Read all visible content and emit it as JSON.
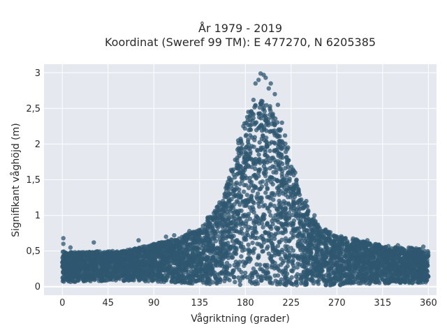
{
  "chart_data": {
    "type": "scatter",
    "title_line1": "År 1979 - 2019",
    "title_line2": "Koordinat (Sweref 99 TM): E 477270, N 6205385",
    "xlabel": "Vågriktning (grader)",
    "ylabel": "Signifikant våghöjd (m)",
    "xlim": [
      -18,
      368
    ],
    "ylim": [
      -0.12,
      3.12
    ],
    "x_ticks": [
      0,
      45,
      90,
      135,
      180,
      225,
      270,
      315,
      360
    ],
    "x_tick_labels": [
      "0",
      "45",
      "90",
      "135",
      "180",
      "225",
      "270",
      "315",
      "360"
    ],
    "y_ticks": [
      0,
      0.5,
      1,
      1.5,
      2,
      2.5,
      3
    ],
    "y_tick_labels": [
      "0",
      "0,5",
      "1",
      "1,5",
      "2",
      "2,5",
      "3"
    ],
    "grid": true,
    "legend": "none",
    "marker_color": "#2f5770",
    "background_color": "#e5e8ef",
    "envelope": {
      "x": [
        0,
        15,
        30,
        45,
        60,
        75,
        90,
        105,
        120,
        135,
        150,
        160,
        170,
        175,
        180,
        190,
        200,
        210,
        220,
        225,
        235,
        245,
        255,
        270,
        285,
        300,
        315,
        330,
        345,
        360
      ],
      "y_min": [
        0.06,
        0.07,
        0.08,
        0.08,
        0.08,
        0.08,
        0.07,
        0.06,
        0.05,
        0.04,
        0.03,
        0.02,
        0.02,
        0.02,
        0.02,
        0.02,
        0.02,
        0.02,
        0.02,
        0.02,
        0.02,
        0.02,
        0.02,
        0.02,
        0.03,
        0.04,
        0.04,
        0.05,
        0.05,
        0.06
      ],
      "y_max": [
        0.5,
        0.48,
        0.5,
        0.5,
        0.5,
        0.55,
        0.6,
        0.65,
        0.72,
        0.82,
        1.08,
        1.35,
        1.85,
        2.1,
        2.35,
        2.55,
        2.65,
        2.4,
        2.0,
        1.75,
        1.3,
        1.0,
        0.82,
        0.72,
        0.68,
        0.62,
        0.58,
        0.55,
        0.55,
        0.5
      ]
    },
    "outliers": [
      {
        "x": 1,
        "y": 0.68
      },
      {
        "x": 1,
        "y": 0.6
      },
      {
        "x": 8,
        "y": 0.55
      },
      {
        "x": 31,
        "y": 0.62
      },
      {
        "x": 75,
        "y": 0.65
      },
      {
        "x": 102,
        "y": 0.7
      },
      {
        "x": 110,
        "y": 0.72
      },
      {
        "x": 125,
        "y": 0.78
      },
      {
        "x": 143,
        "y": 0.97
      },
      {
        "x": 155,
        "y": 1.05
      },
      {
        "x": 158,
        "y": 1.2
      },
      {
        "x": 165,
        "y": 1.5
      },
      {
        "x": 170,
        "y": 1.78
      },
      {
        "x": 173,
        "y": 2.05
      },
      {
        "x": 178,
        "y": 2.25
      },
      {
        "x": 183,
        "y": 2.45
      },
      {
        "x": 188,
        "y": 2.62
      },
      {
        "x": 190,
        "y": 2.85
      },
      {
        "x": 193,
        "y": 2.9
      },
      {
        "x": 195,
        "y": 2.99
      },
      {
        "x": 198,
        "y": 2.97
      },
      {
        "x": 200,
        "y": 2.93
      },
      {
        "x": 203,
        "y": 2.78
      },
      {
        "x": 205,
        "y": 2.85
      },
      {
        "x": 209,
        "y": 2.7
      },
      {
        "x": 212,
        "y": 2.55
      },
      {
        "x": 216,
        "y": 2.3
      },
      {
        "x": 219,
        "y": 2.12
      },
      {
        "x": 222,
        "y": 1.95
      },
      {
        "x": 229,
        "y": 1.6
      },
      {
        "x": 240,
        "y": 1.2
      },
      {
        "x": 248,
        "y": 1.0
      },
      {
        "x": 259,
        "y": 0.8
      },
      {
        "x": 300,
        "y": 0.65
      },
      {
        "x": 330,
        "y": 0.58
      },
      {
        "x": 355,
        "y": 0.56
      }
    ]
  }
}
